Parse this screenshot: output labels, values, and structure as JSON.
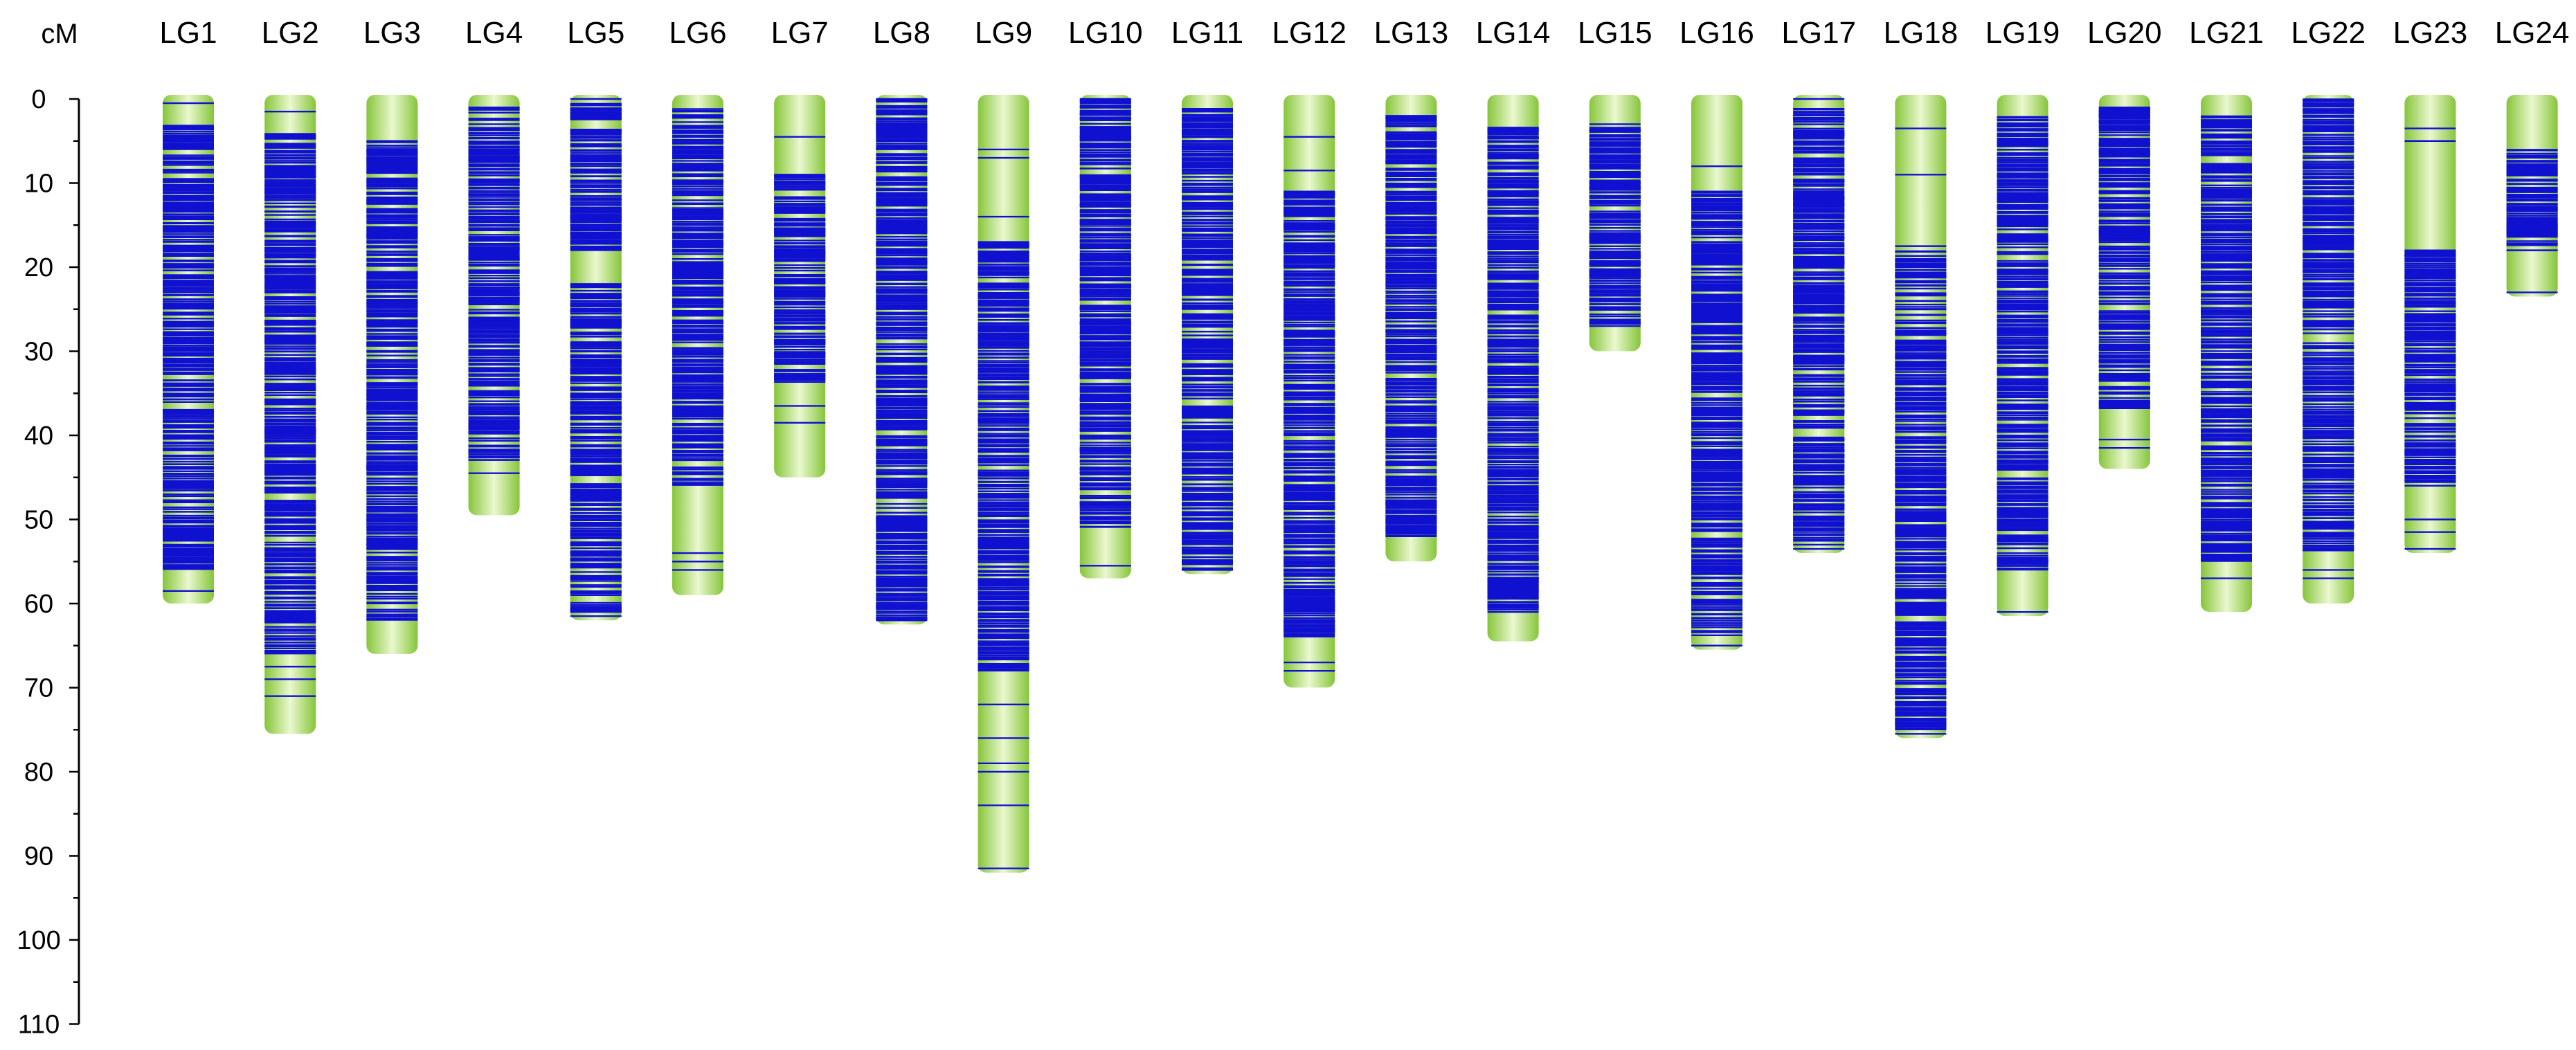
{
  "chart_data": {
    "type": "genetic-linkage-map",
    "y_unit": "cM",
    "ylim": [
      0,
      110
    ],
    "y_ticks": [
      "0",
      "10",
      "20",
      "30",
      "40",
      "50",
      "60",
      "70",
      "80",
      "90",
      "100",
      "110"
    ],
    "y_tick_values": [
      0,
      10,
      20,
      30,
      40,
      50,
      60,
      70,
      80,
      90,
      100,
      110
    ],
    "bar_color": "#92cf45",
    "marker_color": "#1010d0",
    "groups": [
      {
        "name": "LG1",
        "length": 59.5,
        "dense": [
          [
            3,
            56
          ]
        ],
        "markers": [
          0.5,
          3.5,
          53,
          54,
          58.5
        ]
      },
      {
        "name": "LG2",
        "length": 75,
        "dense": [
          [
            4,
            66
          ]
        ],
        "markers": [
          1.5,
          4.2,
          67.5,
          69,
          71
        ]
      },
      {
        "name": "LG3",
        "length": 65.5,
        "dense": [
          [
            5,
            62
          ]
        ],
        "markers": [
          5,
          61.5
        ]
      },
      {
        "name": "LG4",
        "length": 49,
        "dense": [
          [
            1,
            43
          ]
        ],
        "markers": [
          1,
          44.5
        ]
      },
      {
        "name": "LG5",
        "length": 61.5,
        "dense": [
          [
            0,
            18
          ],
          [
            22,
            61
          ]
        ],
        "markers": [
          0,
          22,
          61.5
        ]
      },
      {
        "name": "LG6",
        "length": 58.5,
        "dense": [
          [
            1,
            46
          ]
        ],
        "markers": [
          1.5,
          54,
          55,
          56
        ]
      },
      {
        "name": "LG7",
        "length": 44.5,
        "dense": [
          [
            9,
            34
          ]
        ],
        "markers": [
          4.5,
          9,
          36.5,
          38.5
        ]
      },
      {
        "name": "LG8",
        "length": 62,
        "dense": [
          [
            0,
            62
          ]
        ],
        "markers": [
          0,
          62
        ]
      },
      {
        "name": "LG9",
        "length": 91.5,
        "dense": [
          [
            17,
            68
          ]
        ],
        "markers": [
          6,
          7,
          14,
          17,
          72,
          76,
          79,
          80,
          84,
          91.5
        ]
      },
      {
        "name": "LG10",
        "length": 56.5,
        "dense": [
          [
            0,
            51
          ]
        ],
        "markers": [
          0,
          55.5
        ]
      },
      {
        "name": "LG11",
        "length": 56,
        "dense": [
          [
            1,
            56
          ]
        ],
        "markers": [
          1.5,
          56
        ]
      },
      {
        "name": "LG12",
        "length": 69.5,
        "dense": [
          [
            11,
            64
          ]
        ],
        "markers": [
          4.5,
          8.5,
          11,
          67,
          68
        ]
      },
      {
        "name": "LG13",
        "length": 54.5,
        "dense": [
          [
            2,
            52
          ]
        ],
        "markers": [
          2,
          12.5,
          52
        ]
      },
      {
        "name": "LG14",
        "length": 64,
        "dense": [
          [
            3,
            61
          ]
        ],
        "markers": [
          3.5,
          61
        ]
      },
      {
        "name": "LG15",
        "length": 29.5,
        "dense": [
          [
            3,
            27
          ]
        ],
        "markers": [
          3,
          27
        ]
      },
      {
        "name": "LG16",
        "length": 65,
        "dense": [
          [
            11,
            64
          ]
        ],
        "markers": [
          8,
          11,
          65
        ]
      },
      {
        "name": "LG17",
        "length": 53.5,
        "dense": [
          [
            1,
            53
          ]
        ],
        "markers": [
          0,
          53.5
        ]
      },
      {
        "name": "LG18",
        "length": 75.5,
        "dense": [
          [
            18,
            75
          ]
        ],
        "markers": [
          3.5,
          9,
          17.5,
          75.5
        ]
      },
      {
        "name": "LG19",
        "length": 61,
        "dense": [
          [
            2,
            56
          ]
        ],
        "markers": [
          2.5,
          61
        ]
      },
      {
        "name": "LG20",
        "length": 43.5,
        "dense": [
          [
            1,
            37
          ]
        ],
        "markers": [
          1,
          40.5,
          41.5
        ]
      },
      {
        "name": "LG21",
        "length": 60.5,
        "dense": [
          [
            2,
            55
          ]
        ],
        "markers": [
          2.5,
          57
        ]
      },
      {
        "name": "LG22",
        "length": 59.5,
        "dense": [
          [
            0,
            28
          ],
          [
            29,
            54
          ]
        ],
        "markers": [
          0.5,
          56,
          57
        ]
      },
      {
        "name": "LG23",
        "length": 53.5,
        "dense": [
          [
            18,
            46
          ]
        ],
        "markers": [
          3.5,
          5,
          18,
          50,
          51.5,
          53.5
        ]
      },
      {
        "name": "LG24",
        "length": 23,
        "dense": [
          [
            6,
            18
          ]
        ],
        "markers": [
          6.5,
          15,
          18,
          23
        ]
      }
    ]
  }
}
